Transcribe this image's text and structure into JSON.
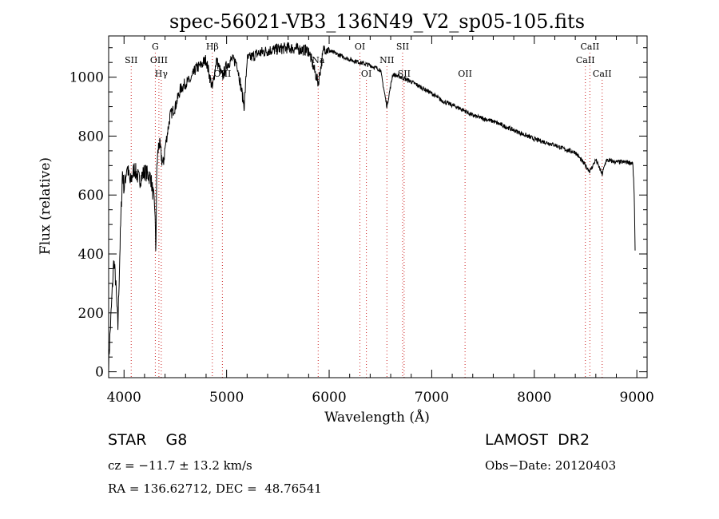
{
  "chart_data": {
    "type": "line",
    "title": "spec-56021-VB3_136N49_V2_sp05-105.fits",
    "xlabel": "Wavelength (Å)",
    "ylabel": "Flux (relative)",
    "xlim": [
      3850,
      9100
    ],
    "ylim": [
      -20,
      1140
    ],
    "xticks": [
      4000,
      5000,
      6000,
      7000,
      8000,
      9000
    ],
    "yticks": [
      0,
      200,
      400,
      600,
      800,
      1000
    ],
    "lines": [
      {
        "label": "SII",
        "x": 4070,
        "row": 2
      },
      {
        "label": "G",
        "x": 4305,
        "row": 1
      },
      {
        "label": "OIII",
        "x": 4340,
        "row": 2
      },
      {
        "label": "Hγ",
        "x": 4363,
        "row": 3
      },
      {
        "label": "Hβ",
        "x": 4861,
        "row": 1
      },
      {
        "label": "OIII",
        "x": 4959,
        "row": 3
      },
      {
        "label": "Na",
        "x": 5893,
        "row": 2
      },
      {
        "label": "OI",
        "x": 6300,
        "row": 1
      },
      {
        "label": "OI",
        "x": 6363,
        "row": 3
      },
      {
        "label": "NII",
        "x": 6563,
        "row": 2
      },
      {
        "label": "SII",
        "x": 6716,
        "row": 1
      },
      {
        "label": "SII",
        "x": 6731,
        "row": 3
      },
      {
        "label": "OII",
        "x": 7325,
        "row": 3
      },
      {
        "label": "CaII",
        "x": 8542,
        "row": 1
      },
      {
        "label": "CaII",
        "x": 8498,
        "row": 2
      },
      {
        "label": "CaII",
        "x": 8662,
        "row": 3
      }
    ],
    "spectrum": {
      "anchors": [
        [
          3850,
          30
        ],
        [
          3880,
          240
        ],
        [
          3900,
          380
        ],
        [
          3920,
          300
        ],
        [
          3940,
          150
        ],
        [
          3960,
          420
        ],
        [
          3985,
          680
        ],
        [
          4000,
          620
        ],
        [
          4030,
          700
        ],
        [
          4060,
          640
        ],
        [
          4100,
          690
        ],
        [
          4150,
          650
        ],
        [
          4200,
          680
        ],
        [
          4260,
          660
        ],
        [
          4300,
          560
        ],
        [
          4310,
          400
        ],
        [
          4320,
          700
        ],
        [
          4340,
          780
        ],
        [
          4380,
          700
        ],
        [
          4400,
          760
        ],
        [
          4450,
          870
        ],
        [
          4500,
          900
        ],
        [
          4550,
          960
        ],
        [
          4600,
          980
        ],
        [
          4650,
          990
        ],
        [
          4700,
          1030
        ],
        [
          4750,
          1040
        ],
        [
          4800,
          1060
        ],
        [
          4861,
          960
        ],
        [
          4900,
          1060
        ],
        [
          4959,
          1000
        ],
        [
          5000,
          1040
        ],
        [
          5050,
          1060
        ],
        [
          5100,
          1050
        ],
        [
          5172,
          900
        ],
        [
          5200,
          1060
        ],
        [
          5300,
          1080
        ],
        [
          5400,
          1090
        ],
        [
          5500,
          1095
        ],
        [
          5600,
          1100
        ],
        [
          5700,
          1095
        ],
        [
          5800,
          1090
        ],
        [
          5893,
          980
        ],
        [
          5950,
          1100
        ],
        [
          6000,
          1090
        ],
        [
          6100,
          1075
        ],
        [
          6200,
          1060
        ],
        [
          6300,
          1050
        ],
        [
          6400,
          1040
        ],
        [
          6500,
          1025
        ],
        [
          6563,
          900
        ],
        [
          6620,
          1010
        ],
        [
          6700,
          1000
        ],
        [
          6800,
          985
        ],
        [
          6900,
          965
        ],
        [
          7000,
          945
        ],
        [
          7100,
          920
        ],
        [
          7200,
          905
        ],
        [
          7300,
          890
        ],
        [
          7400,
          870
        ],
        [
          7500,
          860
        ],
        [
          7600,
          850
        ],
        [
          7700,
          835
        ],
        [
          7800,
          820
        ],
        [
          7900,
          805
        ],
        [
          8000,
          790
        ],
        [
          8100,
          780
        ],
        [
          8200,
          770
        ],
        [
          8300,
          755
        ],
        [
          8400,
          745
        ],
        [
          8498,
          700
        ],
        [
          8542,
          680
        ],
        [
          8600,
          720
        ],
        [
          8662,
          670
        ],
        [
          8700,
          718
        ],
        [
          8800,
          712
        ],
        [
          8900,
          712
        ],
        [
          8960,
          708
        ],
        [
          8975,
          600
        ],
        [
          8985,
          360
        ]
      ],
      "noise_amplitude": 25
    }
  },
  "info": {
    "object_class": "STAR    G8",
    "survey": "LAMOST  DR2",
    "redshift": "cz = −11.7 ± 13.2 km/s",
    "obs_date": "Obs−Date: 20120403",
    "coordinates": "RA = 136.62712, DEC =  48.76541"
  }
}
